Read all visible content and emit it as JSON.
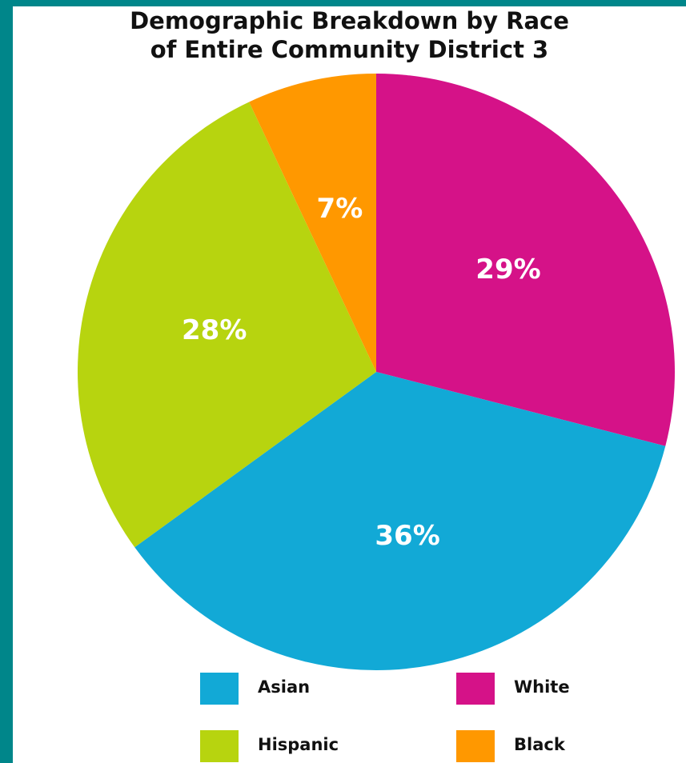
{
  "chart_data": {
    "type": "pie",
    "title": "Demographic Breakdown by Race of Entire Community District 3",
    "title_lines": [
      "Demographic Breakdown by Race",
      "of Entire Community District 3"
    ],
    "slices": [
      {
        "name": "White",
        "value": 29,
        "label": "29%",
        "color": "#d51288"
      },
      {
        "name": "Asian",
        "value": 36,
        "label": "36%",
        "color": "#12a9d6"
      },
      {
        "name": "Hispanic",
        "value": 28,
        "label": "28%",
        "color": "#b7d40f"
      },
      {
        "name": "Black",
        "value": 7,
        "label": "7%",
        "color": "#ff9800"
      }
    ],
    "legend": {
      "placement": "bottom",
      "items": [
        {
          "name": "Asian",
          "color": "#12a9d6"
        },
        {
          "name": "White",
          "color": "#d51288"
        },
        {
          "name": "Hispanic",
          "color": "#b7d40f"
        },
        {
          "name": "Black",
          "color": "#ff9800"
        }
      ]
    }
  }
}
